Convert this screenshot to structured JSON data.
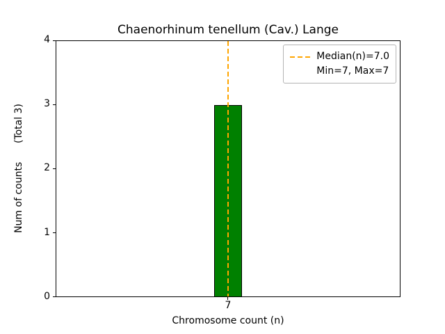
{
  "chart_data": {
    "type": "bar",
    "title": "Chaenorhinum tenellum (Cav.) Lange",
    "xlabel": "Chromosome count (n)",
    "ylabel": "Num of counts      (Total 3)",
    "categories": [
      "7"
    ],
    "values": [
      3
    ],
    "ylim": [
      0,
      4
    ],
    "yticks": [
      "0",
      "1",
      "2",
      "3",
      "4"
    ],
    "bar_color": "#008000",
    "bar_edge_color": "#000000",
    "median_line": {
      "x": 7,
      "color": "#ffa500",
      "style": "dashed"
    },
    "legend": {
      "position": "upper right",
      "entries": [
        "Median(n)=7.0",
        "Min=7, Max=7"
      ]
    },
    "grid": false
  }
}
